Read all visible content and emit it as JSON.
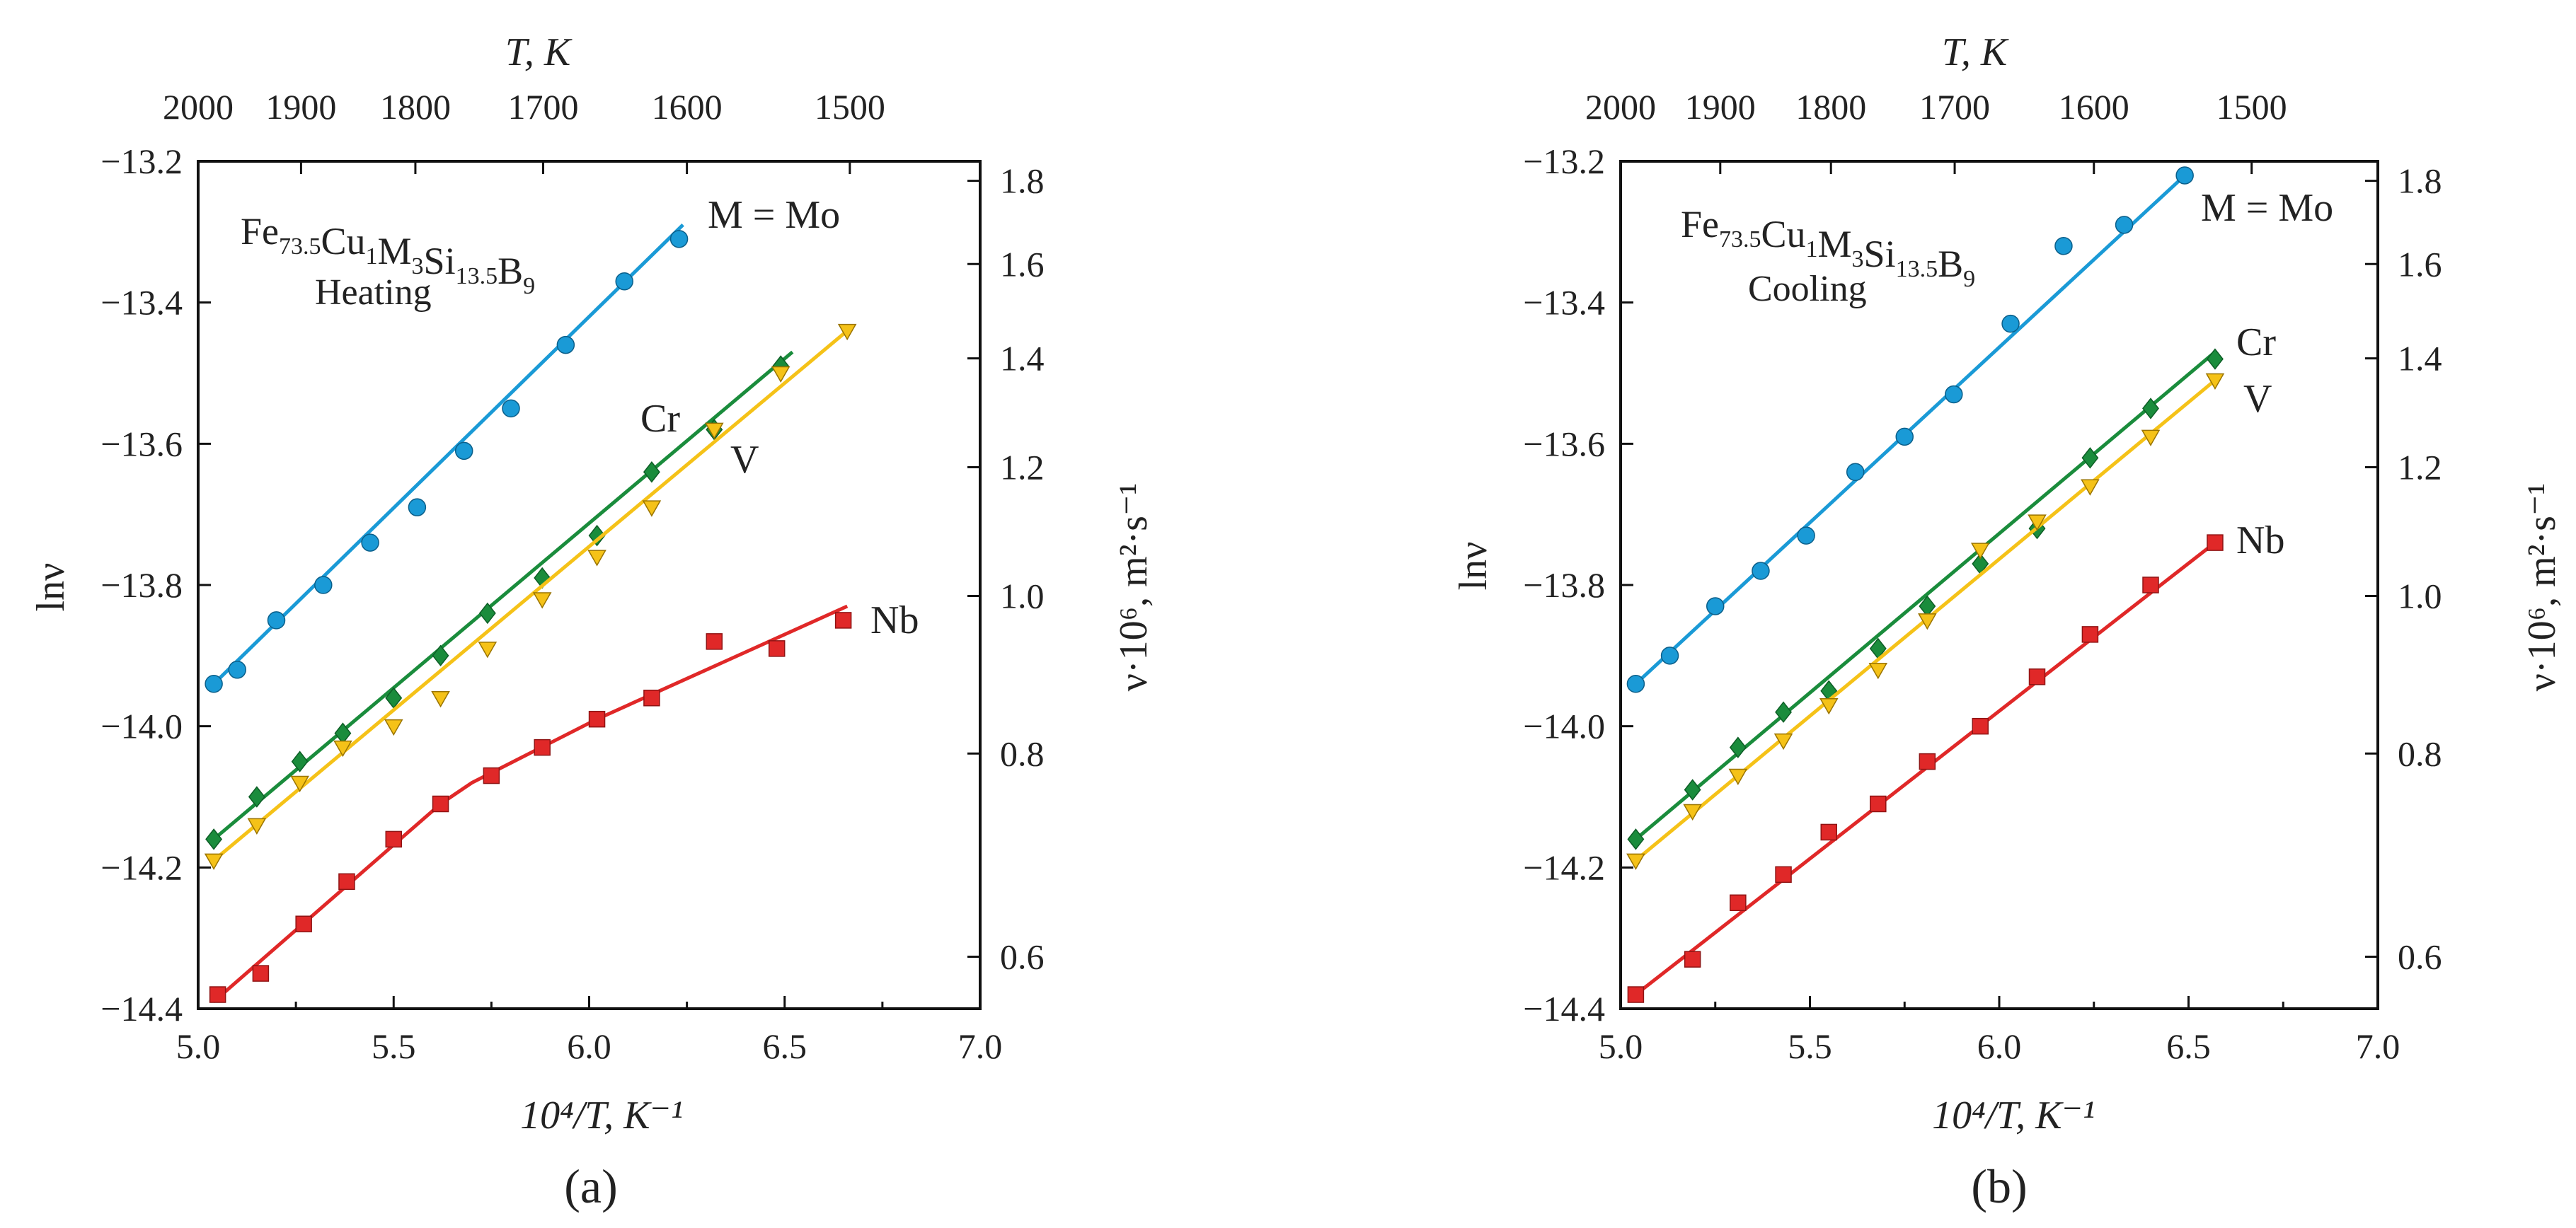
{
  "figure": {
    "panels": [
      {
        "panel_label": "(a)",
        "panel_letter": "a",
        "formula_prefix": "Fe",
        "formula_parts": [
          {
            "el": "Fe",
            "sub": "73.5"
          },
          {
            "el": "Cu",
            "sub": "1"
          },
          {
            "el": "M",
            "sub": "3"
          },
          {
            "el": "Si",
            "sub": "13.5"
          },
          {
            "el": "B",
            "sub": "9"
          }
        ],
        "mode": "Heating"
      },
      {
        "panel_label": "(b)",
        "panel_letter": "b",
        "formula_parts": [
          {
            "el": "Fe",
            "sub": "73.5"
          },
          {
            "el": "Cu",
            "sub": "1"
          },
          {
            "el": "M",
            "sub": "3"
          },
          {
            "el": "Si",
            "sub": "13.5"
          },
          {
            "el": "B",
            "sub": "9"
          }
        ],
        "mode": "Cooling"
      }
    ]
  },
  "chart_data": [
    {
      "type": "scatter",
      "panel": "a",
      "title": "Fe73.5Cu1M3Si13.5B9 Heating",
      "xlabel": "10⁴/T, K⁻¹",
      "ylabel": "lnν",
      "top_xlabel": "T, K",
      "right_ylabel": "ν·10⁶, m²·s⁻¹",
      "xlim": [
        5.0,
        7.0
      ],
      "ylim": [
        -14.4,
        -13.2
      ],
      "x_ticks": [
        "5.0",
        "5.5",
        "6.0",
        "6.5",
        "7.0"
      ],
      "y_ticks": [
        "−13.2",
        "−13.4",
        "−13.6",
        "−13.8",
        "−14.0",
        "−14.2",
        "−14.4"
      ],
      "top_ticks": [
        "2000",
        "1900",
        "1800",
        "1700",
        "1600",
        "1500"
      ],
      "right_ticks": [
        "1.8",
        "1.6",
        "1.4",
        "1.2",
        "1.0",
        "0.8",
        "0.6"
      ],
      "series": [
        {
          "name": "M = Mo",
          "label": "M = Mo",
          "marker": "circle",
          "color": "#1a9ad6",
          "points": [
            [
              5.04,
              -13.94
            ],
            [
              5.1,
              -13.92
            ],
            [
              5.2,
              -13.85
            ],
            [
              5.32,
              -13.8
            ],
            [
              5.44,
              -13.74
            ],
            [
              5.56,
              -13.69
            ],
            [
              5.68,
              -13.61
            ],
            [
              5.8,
              -13.55
            ],
            [
              5.94,
              -13.46
            ],
            [
              6.09,
              -13.37
            ],
            [
              6.23,
              -13.31
            ]
          ],
          "fit": [
            [
              5.04,
              -13.94
            ],
            [
              6.24,
              -13.29
            ]
          ]
        },
        {
          "name": "Cr",
          "label": "Cr",
          "marker": "diamond",
          "color": "#1a8c3c",
          "points": [
            [
              5.04,
              -14.16
            ],
            [
              5.15,
              -14.1
            ],
            [
              5.26,
              -14.05
            ],
            [
              5.37,
              -14.01
            ],
            [
              5.5,
              -13.96
            ],
            [
              5.62,
              -13.9
            ],
            [
              5.74,
              -13.84
            ],
            [
              5.88,
              -13.79
            ],
            [
              6.02,
              -13.73
            ],
            [
              6.16,
              -13.64
            ],
            [
              6.32,
              -13.58
            ],
            [
              6.49,
              -13.49
            ]
          ],
          "fit": [
            [
              5.04,
              -14.16
            ],
            [
              6.52,
              -13.47
            ]
          ]
        },
        {
          "name": "V",
          "label": "V",
          "marker": "triangle",
          "color": "#f5c218",
          "points": [
            [
              5.04,
              -14.19
            ],
            [
              5.15,
              -14.14
            ],
            [
              5.26,
              -14.08
            ],
            [
              5.37,
              -14.03
            ],
            [
              5.5,
              -14.0
            ],
            [
              5.62,
              -13.96
            ],
            [
              5.74,
              -13.89
            ],
            [
              5.88,
              -13.82
            ],
            [
              6.02,
              -13.76
            ],
            [
              6.16,
              -13.69
            ],
            [
              6.32,
              -13.58
            ],
            [
              6.49,
              -13.5
            ],
            [
              6.66,
              -13.44
            ]
          ],
          "fit": [
            [
              5.04,
              -14.19
            ],
            [
              6.66,
              -13.44
            ]
          ]
        },
        {
          "name": "Nb",
          "label": "Nb",
          "marker": "square",
          "color": "#e02828",
          "points": [
            [
              5.05,
              -14.38
            ],
            [
              5.16,
              -14.35
            ],
            [
              5.27,
              -14.28
            ],
            [
              5.38,
              -14.22
            ],
            [
              5.5,
              -14.16
            ],
            [
              5.62,
              -14.11
            ],
            [
              5.75,
              -14.07
            ],
            [
              5.88,
              -14.03
            ],
            [
              6.02,
              -13.99
            ],
            [
              6.16,
              -13.96
            ],
            [
              6.32,
              -13.88
            ],
            [
              6.48,
              -13.89
            ],
            [
              6.65,
              -13.85
            ]
          ],
          "fit": [
            [
              5.04,
              -14.39
            ],
            [
              5.62,
              -14.11
            ],
            [
              5.7,
              -14.08
            ],
            [
              6.02,
              -13.99
            ],
            [
              6.66,
              -13.83
            ]
          ]
        }
      ]
    },
    {
      "type": "scatter",
      "panel": "b",
      "title": "Fe73.5Cu1M3Si13.5B9 Cooling",
      "xlabel": "10⁴/T, K⁻¹",
      "ylabel": "lnν",
      "top_xlabel": "T, K",
      "right_ylabel": "ν·10⁶, m²·s⁻¹",
      "xlim": [
        5.0,
        7.0
      ],
      "ylim": [
        -14.4,
        -13.2
      ],
      "x_ticks": [
        "5.0",
        "5.5",
        "6.0",
        "6.5",
        "7.0"
      ],
      "y_ticks": [
        "−13.2",
        "−13.4",
        "−13.6",
        "−13.8",
        "−14.0",
        "−14.2",
        "−14.4"
      ],
      "top_ticks": [
        "2000",
        "1900",
        "1800",
        "1700",
        "1600",
        "1500"
      ],
      "right_ticks": [
        "1.8",
        "1.6",
        "1.4",
        "1.2",
        "1.0",
        "0.8",
        "0.6"
      ],
      "series": [
        {
          "name": "M = Mo",
          "label": "M = Mo",
          "marker": "circle",
          "color": "#1a9ad6",
          "points": [
            [
              5.04,
              -13.94
            ],
            [
              5.13,
              -13.9
            ],
            [
              5.25,
              -13.83
            ],
            [
              5.37,
              -13.78
            ],
            [
              5.49,
              -13.73
            ],
            [
              5.62,
              -13.64
            ],
            [
              5.75,
              -13.59
            ],
            [
              5.88,
              -13.53
            ],
            [
              6.03,
              -13.43
            ],
            [
              6.17,
              -13.32
            ],
            [
              6.33,
              -13.29
            ],
            [
              6.49,
              -13.22
            ]
          ],
          "fit": [
            [
              5.04,
              -13.94
            ],
            [
              6.49,
              -13.22
            ]
          ]
        },
        {
          "name": "Cr",
          "label": "Cr",
          "marker": "diamond",
          "color": "#1a8c3c",
          "points": [
            [
              5.04,
              -14.16
            ],
            [
              5.19,
              -14.09
            ],
            [
              5.31,
              -14.03
            ],
            [
              5.43,
              -13.98
            ],
            [
              5.55,
              -13.95
            ],
            [
              5.68,
              -13.89
            ],
            [
              5.81,
              -13.83
            ],
            [
              5.95,
              -13.77
            ],
            [
              6.1,
              -13.72
            ],
            [
              6.24,
              -13.62
            ],
            [
              6.4,
              -13.55
            ],
            [
              6.57,
              -13.48
            ]
          ],
          "fit": [
            [
              5.04,
              -14.16
            ],
            [
              6.57,
              -13.47
            ]
          ]
        },
        {
          "name": "V",
          "label": "V",
          "marker": "triangle",
          "color": "#f5c218",
          "points": [
            [
              5.04,
              -14.19
            ],
            [
              5.19,
              -14.12
            ],
            [
              5.31,
              -14.07
            ],
            [
              5.43,
              -14.02
            ],
            [
              5.55,
              -13.97
            ],
            [
              5.68,
              -13.92
            ],
            [
              5.81,
              -13.85
            ],
            [
              5.95,
              -13.75
            ],
            [
              6.1,
              -13.71
            ],
            [
              6.24,
              -13.66
            ],
            [
              6.4,
              -13.59
            ],
            [
              6.57,
              -13.51
            ]
          ],
          "fit": [
            [
              5.04,
              -14.19
            ],
            [
              6.57,
              -13.51
            ]
          ]
        },
        {
          "name": "Nb",
          "label": "Nb",
          "marker": "square",
          "color": "#e02828",
          "points": [
            [
              5.04,
              -14.38
            ],
            [
              5.19,
              -14.33
            ],
            [
              5.31,
              -14.25
            ],
            [
              5.43,
              -14.21
            ],
            [
              5.55,
              -14.15
            ],
            [
              5.68,
              -14.11
            ],
            [
              5.81,
              -14.05
            ],
            [
              5.95,
              -14.0
            ],
            [
              6.1,
              -13.93
            ],
            [
              6.24,
              -13.87
            ],
            [
              6.4,
              -13.8
            ],
            [
              6.57,
              -13.74
            ]
          ],
          "fit": [
            [
              5.04,
              -14.38
            ],
            [
              6.57,
              -13.74
            ]
          ]
        }
      ]
    }
  ]
}
